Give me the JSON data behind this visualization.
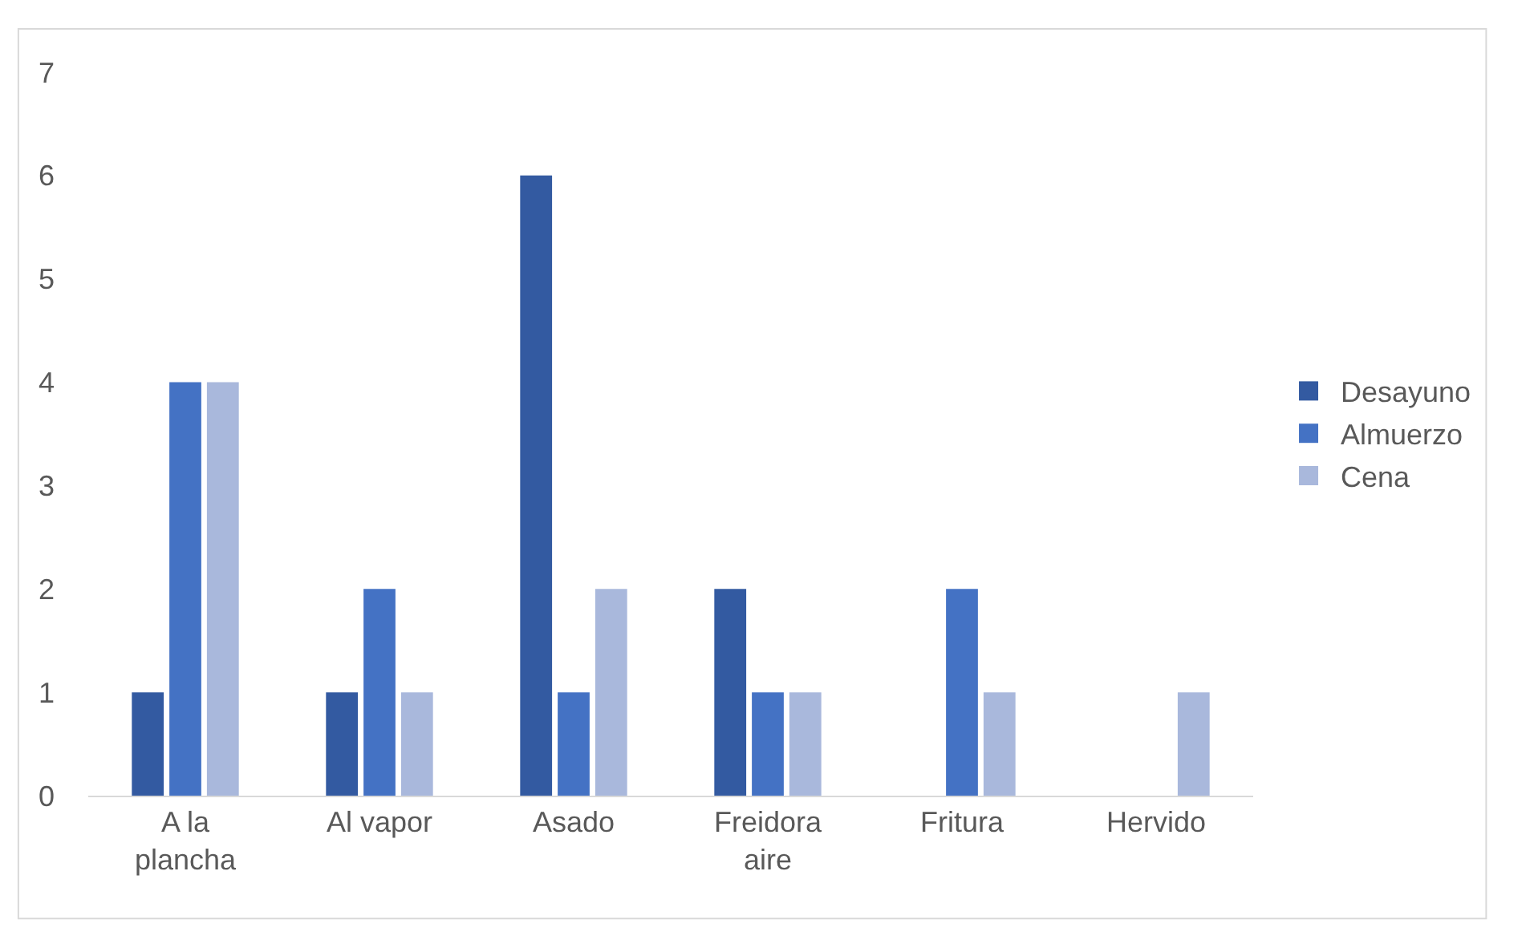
{
  "chart_data": {
    "type": "bar",
    "categories": [
      "A la plancha",
      "Al vapor",
      "Asado",
      "Freidora aire",
      "Fritura",
      "Hervido"
    ],
    "series": [
      {
        "name": "Desayuno",
        "color": "#335aa1",
        "values": [
          1,
          1,
          6,
          2,
          0,
          0
        ]
      },
      {
        "name": "Almuerzo",
        "color": "#4472c4",
        "values": [
          4,
          2,
          1,
          1,
          2,
          0
        ]
      },
      {
        "name": "Cena",
        "color": "#a9b8dc",
        "values": [
          4,
          1,
          2,
          1,
          1,
          1
        ]
      }
    ],
    "ylim": [
      0,
      7
    ],
    "yticks": [
      0,
      1,
      2,
      3,
      4,
      5,
      6,
      7
    ],
    "grid": false,
    "legend": "right"
  }
}
